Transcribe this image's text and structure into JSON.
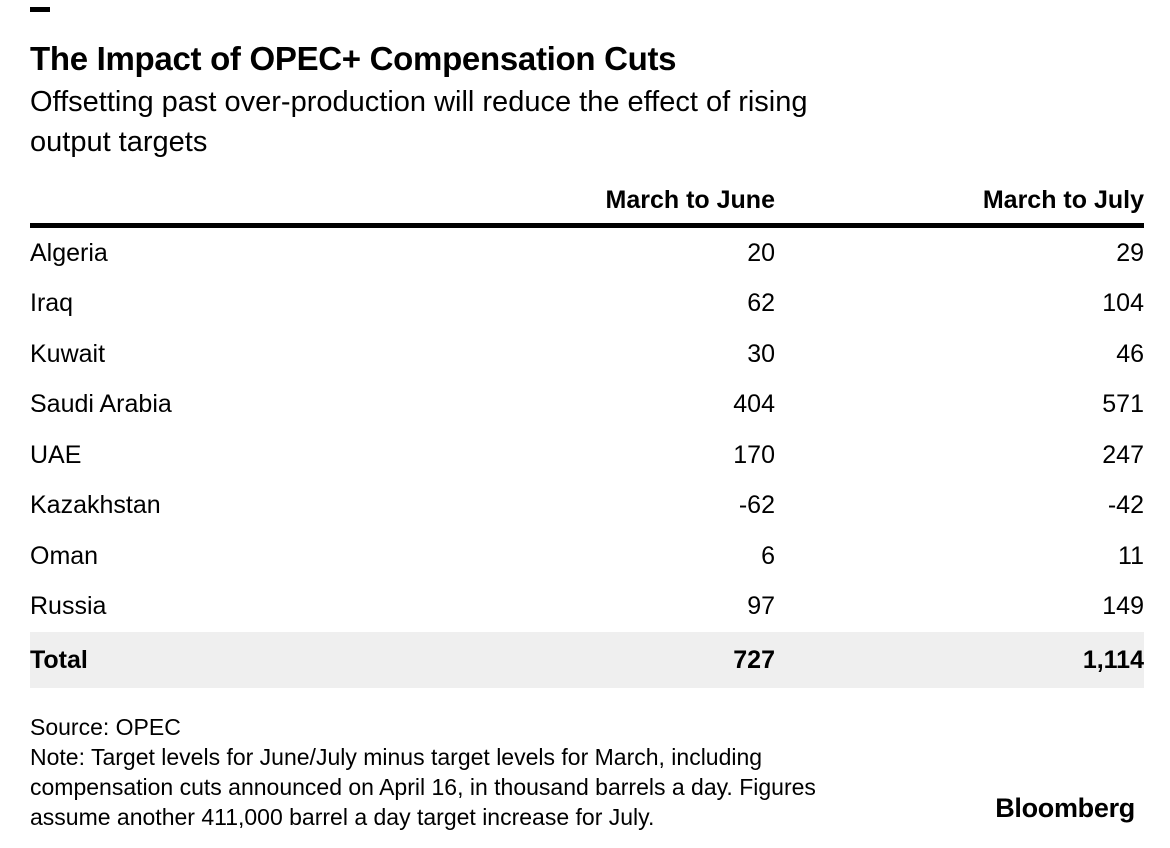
{
  "colors": {
    "text": "#000000",
    "accent_mark": "#000000",
    "header_rule": "#000000",
    "total_row_bg": "#efefef",
    "background": "#ffffff"
  },
  "header": {
    "title": "The Impact of OPEC+ Compensation Cuts",
    "subtitle_lines": [
      "Offsetting past over-production will reduce the effect of rising",
      "output targets"
    ]
  },
  "table": {
    "columns": [
      "",
      "March to June",
      "March to July"
    ],
    "rows": [
      {
        "label": "Algeria",
        "values": [
          "20",
          "29"
        ]
      },
      {
        "label": "Iraq",
        "values": [
          "62",
          "104"
        ]
      },
      {
        "label": "Kuwait",
        "values": [
          "30",
          "46"
        ]
      },
      {
        "label": "Saudi Arabia",
        "values": [
          "404",
          "571"
        ]
      },
      {
        "label": "UAE",
        "values": [
          "170",
          "247"
        ]
      },
      {
        "label": "Kazakhstan",
        "values": [
          "-62",
          "-42"
        ]
      },
      {
        "label": "Oman",
        "values": [
          "6",
          "11"
        ]
      },
      {
        "label": "Russia",
        "values": [
          "97",
          "149"
        ]
      }
    ],
    "total": {
      "label": "Total",
      "values": [
        "727",
        "1,114"
      ]
    }
  },
  "footer": {
    "source": "Source: OPEC",
    "note_lines": [
      "Note: Target levels for June/July minus target levels for March, including",
      "compensation cuts announced on April 16, in thousand barrels a day. Figures",
      "assume another 411,000 barrel a day target increase for July."
    ],
    "brand": "Bloomberg"
  },
  "chart_data": {
    "type": "table",
    "title": "The Impact of OPEC+ Compensation Cuts",
    "subtitle": "Offsetting past over-production will reduce the effect of rising output targets",
    "columns": [
      "",
      "March to June",
      "March to July"
    ],
    "rows": [
      [
        "Algeria",
        20,
        29
      ],
      [
        "Iraq",
        62,
        104
      ],
      [
        "Kuwait",
        30,
        46
      ],
      [
        "Saudi Arabia",
        404,
        571
      ],
      [
        "UAE",
        170,
        247
      ],
      [
        "Kazakhstan",
        -62,
        -42
      ],
      [
        "Oman",
        6,
        11
      ],
      [
        "Russia",
        97,
        149
      ]
    ],
    "total": [
      "Total",
      727,
      1114
    ],
    "units": "thousand barrels a day",
    "source": "Source: OPEC",
    "note": "Note: Target levels for June/July minus target levels for March, including compensation cuts announced on April 16, in thousand barrels a day. Figures assume another 411,000 barrel a day target increase for July."
  }
}
